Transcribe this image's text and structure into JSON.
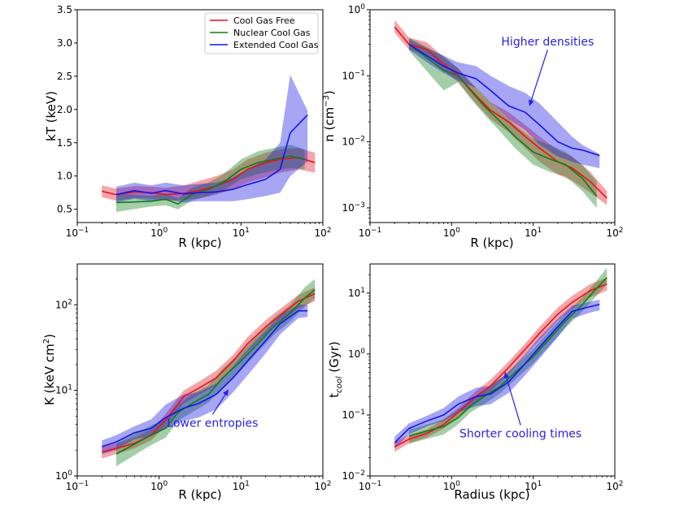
{
  "colors": {
    "cool_gas_free": "#e8111b",
    "nuclear_cool_gas": "#0f7d17",
    "extended_cool_gas": "#1515e6",
    "annotation": "#2a1fe0"
  },
  "chart_data": [
    {
      "id": "kt",
      "type": "line",
      "xlabel": "R (kpc)",
      "ylabel": "kT (keV)",
      "xscale": "log",
      "yscale": "linear",
      "xlim": [
        0.1,
        100
      ],
      "ylim": [
        0.3,
        3.5
      ],
      "xticks": [
        {
          "v": 0.1,
          "b": "10",
          "e": "−1"
        },
        {
          "v": 1,
          "b": "10",
          "e": "0"
        },
        {
          "v": 10,
          "b": "10",
          "e": "1"
        },
        {
          "v": 100,
          "b": "10",
          "e": "2"
        }
      ],
      "yticks": [
        {
          "v": 0.5,
          "t": "0.5"
        },
        {
          "v": 1.0,
          "t": "1.0"
        },
        {
          "v": 1.5,
          "t": "1.5"
        },
        {
          "v": 2.0,
          "t": "2.0"
        },
        {
          "v": 2.5,
          "t": "2.5"
        },
        {
          "v": 3.0,
          "t": "3.0"
        },
        {
          "v": 3.5,
          "t": "3.5"
        }
      ],
      "legend": {
        "position": "top-right",
        "entries": [
          "Cool Gas Free",
          "Nuclear Cool Gas",
          "Extended Cool Gas"
        ]
      },
      "series": [
        {
          "name": "Cool Gas Free",
          "color_key": "cool_gas_free",
          "x": [
            0.2,
            0.3,
            0.5,
            0.8,
            1.2,
            2,
            3,
            5,
            8,
            12,
            20,
            30,
            50,
            80
          ],
          "y": [
            0.77,
            0.72,
            0.76,
            0.75,
            0.72,
            0.74,
            0.78,
            0.85,
            0.95,
            1.1,
            1.2,
            1.25,
            1.28,
            1.2
          ],
          "lo": [
            0.68,
            0.63,
            0.67,
            0.66,
            0.63,
            0.64,
            0.66,
            0.72,
            0.8,
            0.9,
            0.98,
            1.05,
            1.1,
            1.05
          ],
          "hi": [
            0.86,
            0.81,
            0.85,
            0.84,
            0.82,
            0.86,
            0.92,
            1.0,
            1.1,
            1.25,
            1.35,
            1.4,
            1.42,
            1.35
          ]
        },
        {
          "name": "Nuclear Cool Gas",
          "color_key": "nuclear_cool_gas",
          "x": [
            0.3,
            0.8,
            1.2,
            1.7,
            2.5,
            4,
            6,
            10,
            16,
            25,
            40,
            60
          ],
          "y": [
            0.6,
            0.62,
            0.65,
            0.58,
            0.72,
            0.8,
            0.9,
            1.1,
            1.2,
            1.25,
            1.3,
            1.25
          ],
          "lo": [
            0.46,
            0.54,
            0.56,
            0.5,
            0.63,
            0.7,
            0.78,
            0.95,
            1.03,
            1.08,
            1.12,
            1.1
          ],
          "hi": [
            0.74,
            0.7,
            0.74,
            0.66,
            0.82,
            0.9,
            1.02,
            1.25,
            1.37,
            1.42,
            1.47,
            1.4
          ]
        },
        {
          "name": "Extended Cool Gas",
          "color_key": "extended_cool_gas",
          "x": [
            0.3,
            0.5,
            0.8,
            1.2,
            2,
            3,
            5,
            8,
            12,
            20,
            30,
            40,
            65
          ],
          "y": [
            0.72,
            0.78,
            0.74,
            0.78,
            0.73,
            0.75,
            0.76,
            0.8,
            0.87,
            0.95,
            1.1,
            1.65,
            1.92
          ],
          "lo": [
            0.6,
            0.66,
            0.62,
            0.65,
            0.6,
            0.62,
            0.62,
            0.62,
            0.65,
            0.7,
            0.75,
            1.0,
            1.22
          ],
          "hi": [
            0.84,
            0.9,
            0.86,
            0.9,
            0.86,
            0.88,
            0.9,
            0.98,
            1.1,
            1.25,
            1.5,
            2.52,
            1.98
          ]
        }
      ]
    },
    {
      "id": "n",
      "type": "line",
      "xlabel": "R (kpc)",
      "ylabel": "n (cm",
      "ylabel_sup": "−3",
      "ylabel_end": ")",
      "xscale": "log",
      "yscale": "log",
      "xlim": [
        0.1,
        100
      ],
      "ylim": [
        0.0006,
        1
      ],
      "xticks": [
        {
          "v": 0.1,
          "b": "10",
          "e": "−1"
        },
        {
          "v": 1,
          "b": "10",
          "e": "0"
        },
        {
          "v": 10,
          "b": "10",
          "e": "1"
        },
        {
          "v": 100,
          "b": "10",
          "e": "2"
        }
      ],
      "yticks": [
        {
          "v": 0.001,
          "b": "10",
          "e": "−3"
        },
        {
          "v": 0.01,
          "b": "10",
          "e": "−2"
        },
        {
          "v": 0.1,
          "b": "10",
          "e": "−1"
        },
        {
          "v": 1,
          "b": "10",
          "e": "0"
        }
      ],
      "annotation": {
        "text": "Higher densities",
        "text_at": [
          15,
          0.33
        ],
        "arrow_to": [
          9,
          0.035
        ]
      },
      "series": [
        {
          "name": "Cool Gas Free",
          "color_key": "cool_gas_free",
          "x": [
            0.2,
            0.3,
            0.5,
            0.8,
            1.2,
            2,
            3,
            5,
            8,
            12,
            20,
            30,
            50,
            80
          ],
          "y": [
            0.55,
            0.3,
            0.25,
            0.15,
            0.1,
            0.05,
            0.03,
            0.02,
            0.012,
            0.008,
            0.005,
            0.004,
            0.0025,
            0.0014
          ],
          "lo": [
            0.45,
            0.25,
            0.2,
            0.12,
            0.08,
            0.038,
            0.022,
            0.014,
            0.008,
            0.005,
            0.0032,
            0.0026,
            0.0017,
            0.0011
          ],
          "hi": [
            0.7,
            0.38,
            0.32,
            0.19,
            0.13,
            0.065,
            0.04,
            0.028,
            0.018,
            0.012,
            0.0075,
            0.006,
            0.0035,
            0.0018
          ]
        },
        {
          "name": "Nuclear Cool Gas",
          "color_key": "nuclear_cool_gas",
          "x": [
            0.3,
            0.8,
            1.2,
            1.7,
            2.5,
            4,
            6,
            10,
            16,
            25,
            40,
            60
          ],
          "y": [
            0.3,
            0.12,
            0.1,
            0.06,
            0.035,
            0.02,
            0.012,
            0.007,
            0.0055,
            0.0045,
            0.0028,
            0.0015
          ],
          "lo": [
            0.24,
            0.06,
            0.08,
            0.045,
            0.026,
            0.014,
            0.008,
            0.0045,
            0.0035,
            0.003,
            0.0018,
            0.001
          ],
          "hi": [
            0.38,
            0.2,
            0.13,
            0.08,
            0.05,
            0.028,
            0.018,
            0.011,
            0.009,
            0.007,
            0.0045,
            0.0025
          ]
        },
        {
          "name": "Extended Cool Gas",
          "color_key": "extended_cool_gas",
          "x": [
            0.3,
            0.5,
            0.8,
            1.2,
            2,
            3,
            5,
            8,
            12,
            20,
            30,
            40,
            65
          ],
          "y": [
            0.3,
            0.2,
            0.14,
            0.11,
            0.09,
            0.06,
            0.035,
            0.028,
            0.018,
            0.01,
            0.008,
            0.0075,
            0.0062
          ],
          "lo": [
            0.25,
            0.16,
            0.11,
            0.085,
            0.065,
            0.04,
            0.022,
            0.015,
            0.009,
            0.006,
            0.005,
            0.0045,
            0.004
          ],
          "hi": [
            0.36,
            0.26,
            0.2,
            0.16,
            0.14,
            0.1,
            0.07,
            0.055,
            0.038,
            0.02,
            0.012,
            0.009,
            0.0065
          ]
        }
      ]
    },
    {
      "id": "k",
      "type": "line",
      "xlabel": "R (kpc)",
      "ylabel": "K (keV cm",
      "ylabel_sup": "2",
      "ylabel_end": ")",
      "xscale": "log",
      "yscale": "log",
      "xlim": [
        0.1,
        100
      ],
      "ylim": [
        1,
        300
      ],
      "xticks": [
        {
          "v": 0.1,
          "b": "10",
          "e": "−1"
        },
        {
          "v": 1,
          "b": "10",
          "e": "0"
        },
        {
          "v": 10,
          "b": "10",
          "e": "1"
        },
        {
          "v": 100,
          "b": "10",
          "e": "2"
        }
      ],
      "yticks": [
        {
          "v": 1,
          "b": "10",
          "e": "0"
        },
        {
          "v": 10,
          "b": "10",
          "e": "1"
        },
        {
          "v": 100,
          "b": "10",
          "e": "2"
        }
      ],
      "annotation": {
        "text": "Lower entropies",
        "text_at": [
          4.5,
          4.2
        ],
        "arrow_to": [
          7,
          10.2
        ]
      },
      "series": [
        {
          "name": "Cool Gas Free",
          "color_key": "cool_gas_free",
          "x": [
            0.2,
            0.3,
            0.5,
            0.8,
            1.2,
            2,
            3,
            5,
            8,
            12,
            20,
            30,
            50,
            80
          ],
          "y": [
            1.9,
            2.1,
            2.4,
            3.0,
            4.5,
            8.5,
            10.5,
            14,
            22,
            35,
            55,
            75,
            110,
            135
          ],
          "lo": [
            1.6,
            1.8,
            2.1,
            2.6,
            3.8,
            7,
            8.7,
            11.5,
            18,
            28,
            45,
            62,
            90,
            110
          ],
          "hi": [
            2.2,
            2.4,
            2.8,
            3.5,
            5.3,
            10,
            12.5,
            17,
            26,
            42,
            66,
            90,
            130,
            160
          ]
        },
        {
          "name": "Nuclear Cool Gas",
          "color_key": "nuclear_cool_gas",
          "x": [
            0.3,
            0.8,
            1.2,
            1.7,
            2.5,
            4,
            6,
            10,
            16,
            25,
            40,
            60,
            80
          ],
          "y": [
            1.8,
            3.0,
            3.6,
            5.5,
            7,
            9,
            14,
            22,
            35,
            55,
            80,
            120,
            150
          ],
          "lo": [
            1.3,
            2.3,
            2.8,
            4.4,
            5.5,
            7.2,
            11,
            17,
            28,
            44,
            64,
            95,
            120
          ],
          "hi": [
            2.4,
            3.9,
            4.6,
            6.8,
            9,
            11.5,
            18,
            28,
            44,
            70,
            100,
            160,
            200
          ]
        },
        {
          "name": "Extended Cool Gas",
          "color_key": "extended_cool_gas",
          "x": [
            0.2,
            0.3,
            0.5,
            0.8,
            1.2,
            2,
            3,
            5,
            8,
            12,
            20,
            30,
            50,
            65
          ],
          "y": [
            2.2,
            2.5,
            3.2,
            3.6,
            4.8,
            6.2,
            7.0,
            9.0,
            14,
            22,
            38,
            60,
            85,
            85
          ],
          "lo": [
            1.8,
            2.0,
            2.7,
            2.9,
            3.6,
            4.4,
            4.8,
            6.0,
            9.5,
            15,
            27,
            45,
            70,
            72
          ],
          "hi": [
            2.6,
            3.0,
            3.8,
            4.6,
            6.8,
            9.0,
            9.5,
            12,
            19,
            30,
            50,
            75,
            100,
            100
          ]
        }
      ]
    },
    {
      "id": "tcool",
      "type": "line",
      "xlabel": "Radius (kpc)",
      "ylabel": "t",
      "ylabel_sub": "cool",
      "ylabel_end": " (Gyr)",
      "xscale": "log",
      "yscale": "log",
      "xlim": [
        0.1,
        100
      ],
      "ylim": [
        0.01,
        30
      ],
      "xticks": [
        {
          "v": 0.1,
          "b": "10",
          "e": "−1"
        },
        {
          "v": 1,
          "b": "10",
          "e": "0"
        },
        {
          "v": 10,
          "b": "10",
          "e": "1"
        },
        {
          "v": 100,
          "b": "10",
          "e": "2"
        }
      ],
      "yticks": [
        {
          "v": 0.01,
          "b": "10",
          "e": "−2"
        },
        {
          "v": 0.1,
          "b": "10",
          "e": "−1"
        },
        {
          "v": 1,
          "b": "10",
          "e": "0"
        },
        {
          "v": 10,
          "b": "10",
          "e": "1"
        }
      ],
      "annotation": {
        "text": "Shorter cooling times",
        "text_at": [
          7,
          0.05
        ],
        "arrow_to": [
          4.5,
          0.5
        ]
      },
      "series": [
        {
          "name": "Cool Gas Free",
          "color_key": "cool_gas_free",
          "x": [
            0.2,
            0.3,
            0.5,
            0.8,
            1.2,
            2,
            3,
            5,
            8,
            12,
            20,
            30,
            50,
            80
          ],
          "y": [
            0.03,
            0.04,
            0.05,
            0.07,
            0.11,
            0.2,
            0.3,
            0.6,
            1.2,
            2.2,
            4.5,
            7,
            11,
            14
          ],
          "lo": [
            0.025,
            0.034,
            0.043,
            0.06,
            0.09,
            0.16,
            0.24,
            0.47,
            0.95,
            1.7,
            3.5,
            5.5,
            8.5,
            11
          ],
          "hi": [
            0.036,
            0.047,
            0.058,
            0.085,
            0.13,
            0.25,
            0.38,
            0.75,
            1.5,
            2.8,
            5.8,
            9,
            14,
            18
          ]
        },
        {
          "name": "Nuclear Cool Gas",
          "color_key": "nuclear_cool_gas",
          "x": [
            0.3,
            0.8,
            1.2,
            1.7,
            2.5,
            4,
            6,
            10,
            16,
            25,
            40,
            60,
            80
          ],
          "y": [
            0.045,
            0.065,
            0.09,
            0.14,
            0.2,
            0.3,
            0.5,
            0.9,
            1.8,
            3.5,
            6.5,
            12,
            18
          ],
          "lo": [
            0.034,
            0.048,
            0.07,
            0.11,
            0.15,
            0.23,
            0.38,
            0.7,
            1.4,
            2.7,
            5,
            9,
            14
          ],
          "hi": [
            0.057,
            0.085,
            0.12,
            0.18,
            0.26,
            0.4,
            0.65,
            1.2,
            2.4,
            4.6,
            8.5,
            16,
            26
          ]
        },
        {
          "name": "Extended Cool Gas",
          "color_key": "extended_cool_gas",
          "x": [
            0.2,
            0.3,
            0.5,
            0.8,
            1.2,
            2,
            3,
            5,
            8,
            12,
            20,
            30,
            50,
            65
          ],
          "y": [
            0.035,
            0.06,
            0.08,
            0.1,
            0.15,
            0.2,
            0.22,
            0.35,
            0.7,
            1.3,
            2.8,
            5,
            6,
            6.5
          ],
          "lo": [
            0.028,
            0.048,
            0.065,
            0.08,
            0.11,
            0.14,
            0.15,
            0.23,
            0.45,
            0.85,
            1.9,
            3.8,
            4.8,
            5.2
          ],
          "hi": [
            0.044,
            0.073,
            0.097,
            0.13,
            0.2,
            0.28,
            0.3,
            0.5,
            1.0,
            1.9,
            3.8,
            6.2,
            7.2,
            7.8
          ]
        }
      ]
    }
  ]
}
